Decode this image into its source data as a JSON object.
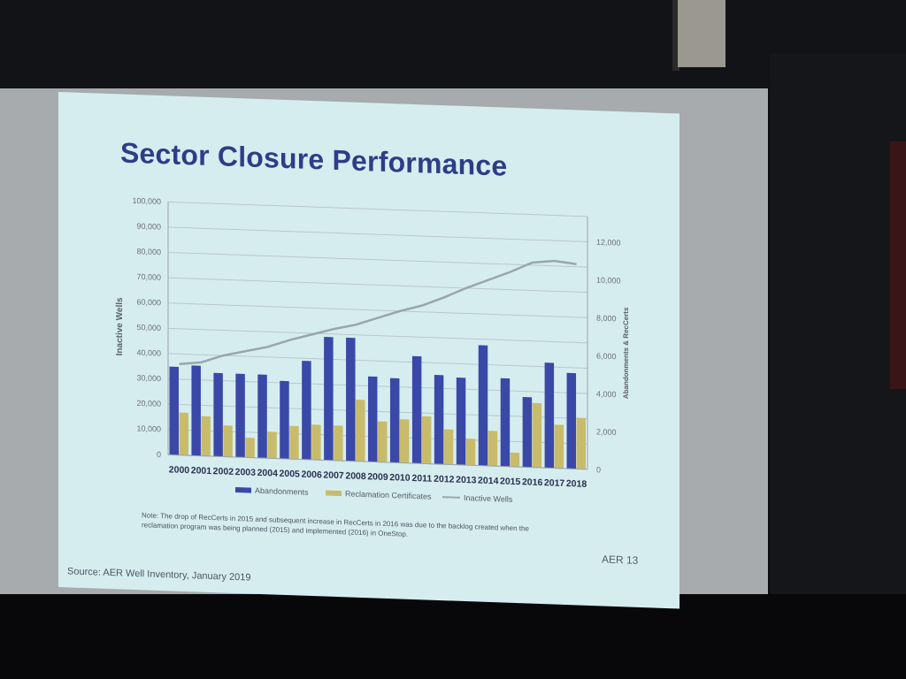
{
  "slide": {
    "title": "Sector Closure Performance",
    "note": "Note: The drop of RecCerts in 2015 and subsequent increase in RecCerts in 2016 was due to the backlog created when the reclamation program was being planned (2015) and implemented (2016) in OneStop.",
    "page_label": "AER 13",
    "source": "Source: AER Well Inventory, January 2019",
    "colors": {
      "background": "#d6edf0",
      "title": "#2e3d86"
    }
  },
  "chart_data": {
    "type": "bar",
    "categories": [
      "2000",
      "2001",
      "2002",
      "2003",
      "2004",
      "2005",
      "2006",
      "2007",
      "2008",
      "2009",
      "2010",
      "2011",
      "2012",
      "2013",
      "2014",
      "2015",
      "2016",
      "2017",
      "2018"
    ],
    "ylabel": "Inactive Wells",
    "ylabel_right": "Abandonments & RecCerts",
    "ylim": [
      0,
      100000
    ],
    "ylim_right": [
      0,
      13333
    ],
    "yticks": [
      "0",
      "10,000",
      "20,000",
      "30,000",
      "40,000",
      "50,000",
      "60,000",
      "70,000",
      "80,000",
      "90,000",
      "100,000"
    ],
    "yticks_right": [
      "0",
      "2,000",
      "4,000",
      "6,000",
      "8,000",
      "10,000",
      "12,000"
    ],
    "series": [
      {
        "name": "Abandonments",
        "type": "bar",
        "axis": "right",
        "color": "#3a48a8",
        "values": [
          4650,
          4750,
          4400,
          4400,
          4400,
          4100,
          5200,
          6500,
          6500,
          4500,
          4450,
          5650,
          4700,
          4600,
          6350,
          4650,
          3700,
          5550,
          5050
        ]
      },
      {
        "name": "Reclamation Certificates",
        "type": "bar",
        "axis": "right",
        "color": "#c8bc6c",
        "values": [
          2250,
          2100,
          1650,
          1050,
          1400,
          1750,
          1850,
          1850,
          3250,
          2150,
          2300,
          2500,
          1850,
          1400,
          1850,
          750,
          3400,
          2300,
          2700
        ]
      },
      {
        "name": "Inactive Wells",
        "type": "line",
        "axis": "left",
        "color": "#9aa6ac",
        "values": [
          36000,
          37000,
          40000,
          42000,
          44000,
          47000,
          49500,
          52000,
          54000,
          57000,
          60000,
          62500,
          66000,
          70000,
          73500,
          77000,
          81000,
          82000,
          81000
        ]
      }
    ],
    "legend": "bottom",
    "grid": true
  }
}
